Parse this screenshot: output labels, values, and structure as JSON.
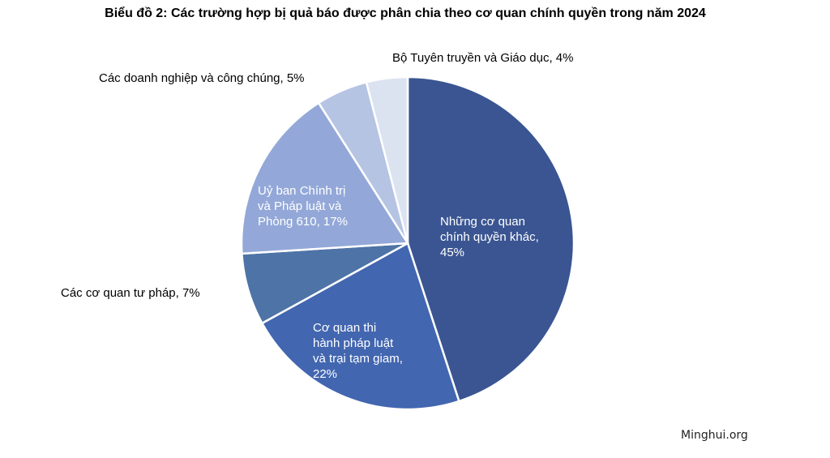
{
  "chart_data": {
    "type": "pie",
    "title": "Biểu đồ 2: Các trường hợp bị quả báo được phân chia theo cơ quan chính quyền trong năm 2024",
    "slices": [
      {
        "label": [
          "Những cơ quan",
          "chính quyền khác,",
          "45%"
        ],
        "value": 45,
        "color": "#3A5592",
        "inside": true,
        "text_color": "#ffffff"
      },
      {
        "label": [
          "Cơ quan thi",
          "hành pháp luật",
          "và trại tạm giam,",
          "22%"
        ],
        "value": 22,
        "color": "#4266B0",
        "inside": true,
        "text_color": "#ffffff"
      },
      {
        "label": [
          "Các cơ quan tư pháp, 7%"
        ],
        "value": 7,
        "color": "#4E73A6",
        "inside": false,
        "text_color": "#000000"
      },
      {
        "label": [
          "Uỷ ban Chính trị",
          "và Pháp luật và",
          "Phòng 610, 17%"
        ],
        "value": 17,
        "color": "#93A8D8",
        "inside": true,
        "text_color": "#ffffff"
      },
      {
        "label": [
          "Các doanh nghiệp và công chúng, 5%"
        ],
        "value": 5,
        "color": "#B6C4E3",
        "inside": false,
        "text_color": "#000000"
      },
      {
        "label": [
          "Bộ Tuyên truyền và Giáo dục, 4%"
        ],
        "value": 4,
        "color": "#DBE2F0",
        "inside": false,
        "text_color": "#000000"
      }
    ],
    "start": "top",
    "direction": "clockwise",
    "legend": "none"
  },
  "source": "Minghui.org"
}
